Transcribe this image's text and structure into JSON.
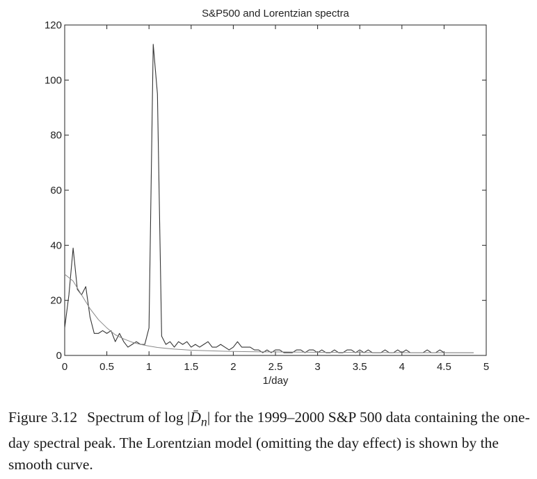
{
  "chart_data": {
    "type": "line",
    "title": "S&P500 and Lorentzian spectra",
    "xlabel": "1/day",
    "ylabel": "",
    "xlim": [
      0,
      5
    ],
    "ylim": [
      0,
      120
    ],
    "xticks": [
      "0",
      "0.5",
      "1",
      "1.5",
      "2",
      "2.5",
      "3",
      "3.5",
      "4",
      "4.5",
      "5"
    ],
    "yticks": [
      "0",
      "20",
      "40",
      "60",
      "80",
      "100",
      "120"
    ],
    "grid": false,
    "series": [
      {
        "line_color": "#333333",
        "x": [
          0.0,
          0.05,
          0.1,
          0.15,
          0.2,
          0.25,
          0.3,
          0.35,
          0.4,
          0.45,
          0.5,
          0.55,
          0.6,
          0.65,
          0.7,
          0.75,
          0.8,
          0.85,
          0.9,
          0.95,
          1.0,
          1.05,
          1.1,
          1.15,
          1.2,
          1.25,
          1.3,
          1.35,
          1.4,
          1.45,
          1.5,
          1.55,
          1.6,
          1.65,
          1.7,
          1.75,
          1.8,
          1.85,
          1.9,
          1.95,
          2.0,
          2.05,
          2.1,
          2.15,
          2.2,
          2.25,
          2.3,
          2.35,
          2.4,
          2.45,
          2.5,
          2.55,
          2.6,
          2.65,
          2.7,
          2.75,
          2.8,
          2.85,
          2.9,
          2.95,
          3.0,
          3.05,
          3.1,
          3.15,
          3.2,
          3.25,
          3.3,
          3.35,
          3.4,
          3.45,
          3.5,
          3.55,
          3.6,
          3.65,
          3.7,
          3.75,
          3.8,
          3.85,
          3.9,
          3.95,
          4.0,
          4.05,
          4.1,
          4.15,
          4.2,
          4.25,
          4.3,
          4.35,
          4.4,
          4.45,
          4.5,
          4.55,
          4.6,
          4.65,
          4.7,
          4.75,
          4.8,
          4.85
        ],
        "y": [
          10,
          22,
          39,
          24,
          22,
          25,
          14,
          8,
          8,
          9,
          8,
          9,
          5,
          8,
          5,
          3,
          4,
          5,
          4,
          4,
          10,
          113,
          95,
          7,
          4,
          5,
          3,
          5,
          4,
          5,
          3,
          4,
          3,
          4,
          5,
          3,
          3,
          4,
          3,
          2,
          3,
          5,
          3,
          3,
          3,
          2,
          2,
          1,
          2,
          1,
          2,
          2,
          1,
          1,
          1,
          2,
          2,
          1,
          2,
          2,
          1,
          2,
          1,
          1,
          2,
          1,
          1,
          2,
          2,
          1,
          2,
          1,
          2,
          1,
          1,
          1,
          2,
          1,
          1,
          2,
          1,
          2,
          1,
          1,
          1,
          1,
          2,
          1,
          1,
          2,
          1,
          1,
          1,
          1,
          1,
          1,
          1,
          1
        ]
      },
      {
        "line_color": "#888888",
        "x": [
          0.0,
          0.1,
          0.2,
          0.3,
          0.4,
          0.5,
          0.6,
          0.7,
          0.8,
          0.9,
          1.0,
          1.1,
          1.2,
          1.3,
          1.4,
          1.5,
          1.6,
          1.7,
          1.8,
          1.9,
          2.0,
          2.2,
          2.4,
          2.6,
          2.8,
          3.0,
          3.2,
          3.4,
          3.6,
          3.8,
          4.0,
          4.2,
          4.4,
          4.6,
          4.85
        ],
        "y": [
          29.5,
          27,
          22,
          17,
          13,
          10,
          7.5,
          6,
          4.8,
          4,
          3.4,
          2.9,
          2.6,
          2.3,
          2.1,
          1.9,
          1.8,
          1.7,
          1.6,
          1.5,
          1.45,
          1.35,
          1.3,
          1.25,
          1.2,
          1.15,
          1.1,
          1.1,
          1.05,
          1.05,
          1.0,
          1.0,
          1.0,
          1.0,
          1.0
        ]
      }
    ]
  },
  "caption": {
    "figure_number": "Figure 3.12",
    "text_before": "Spectrum of log |",
    "math_symbol": "D̄",
    "math_subscript": "n",
    "text_after": "| for the 1999–2000 S&P 500 data containing the one-day spectral peak. The Lorentzian model (omitting the day effect) is shown by the smooth curve."
  }
}
